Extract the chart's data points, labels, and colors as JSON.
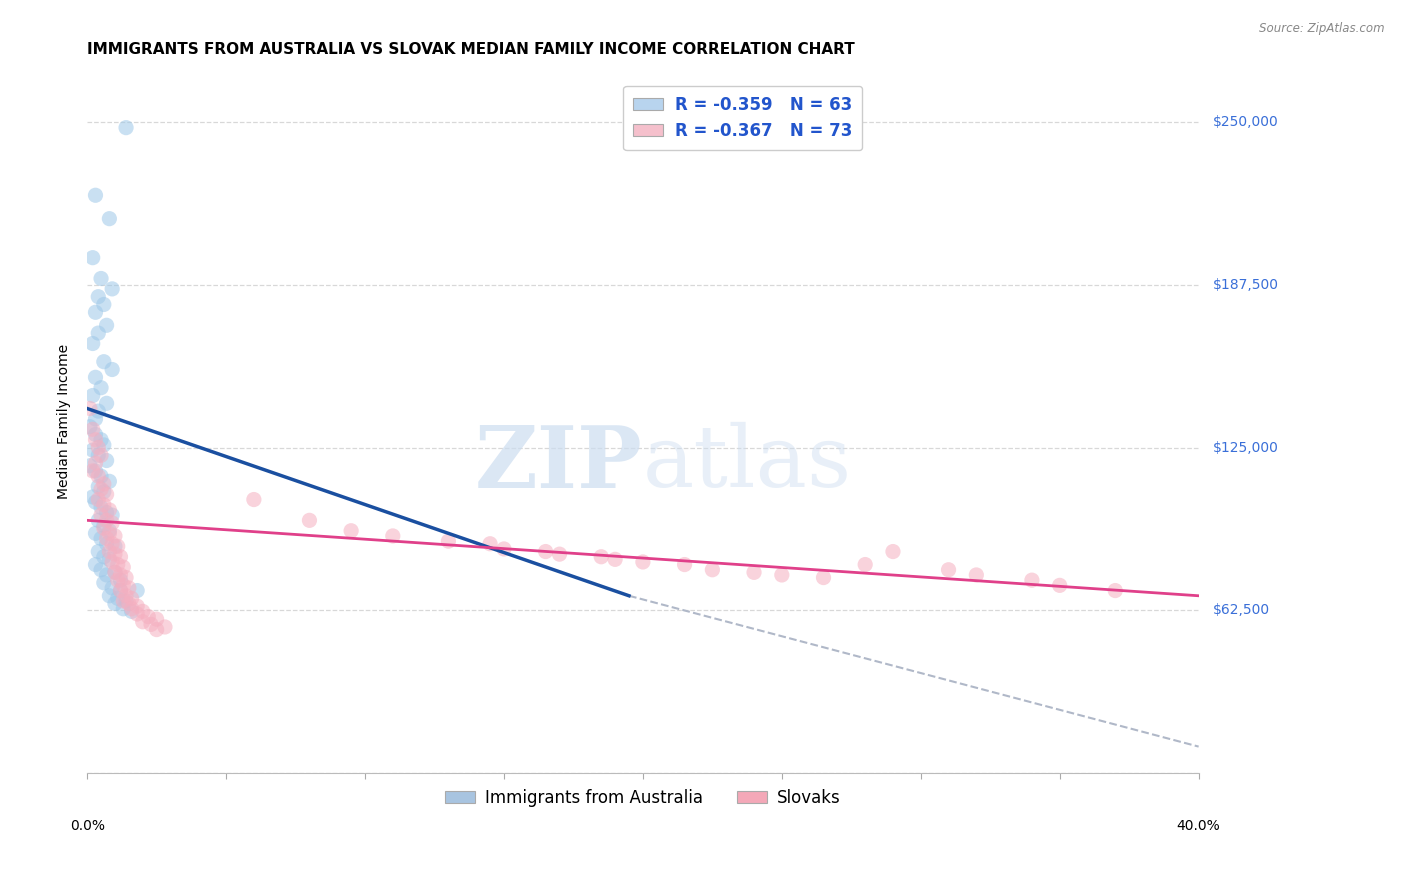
{
  "title": "IMMIGRANTS FROM AUSTRALIA VS SLOVAK MEDIAN FAMILY INCOME CORRELATION CHART",
  "source": "Source: ZipAtlas.com",
  "ylabel": "Median Family Income",
  "yticks": [
    0,
    62500,
    125000,
    187500,
    250000
  ],
  "ytick_labels": [
    "",
    "$62,500",
    "$125,000",
    "$187,500",
    "$250,000"
  ],
  "xlim": [
    0.0,
    0.4
  ],
  "ylim": [
    0,
    270000
  ],
  "legend_bottom": [
    "Immigrants from Australia",
    "Slovaks"
  ],
  "legend_bottom_colors": [
    "#a8c4e0",
    "#f4a8b8"
  ],
  "watermark_zip": "ZIP",
  "watermark_atlas": "atlas",
  "blue_scatter": [
    [
      0.014,
      248000
    ],
    [
      0.003,
      222000
    ],
    [
      0.008,
      213000
    ],
    [
      0.002,
      198000
    ],
    [
      0.005,
      190000
    ],
    [
      0.009,
      186000
    ],
    [
      0.004,
      183000
    ],
    [
      0.006,
      180000
    ],
    [
      0.003,
      177000
    ],
    [
      0.007,
      172000
    ],
    [
      0.004,
      169000
    ],
    [
      0.002,
      165000
    ],
    [
      0.006,
      158000
    ],
    [
      0.009,
      155000
    ],
    [
      0.003,
      152000
    ],
    [
      0.005,
      148000
    ],
    [
      0.002,
      145000
    ],
    [
      0.007,
      142000
    ],
    [
      0.004,
      139000
    ],
    [
      0.003,
      136000
    ],
    [
      0.001,
      133000
    ],
    [
      0.003,
      130000
    ],
    [
      0.005,
      128000
    ],
    [
      0.006,
      126000
    ],
    [
      0.002,
      124000
    ],
    [
      0.004,
      122000
    ],
    [
      0.007,
      120000
    ],
    [
      0.001,
      118000
    ],
    [
      0.003,
      116000
    ],
    [
      0.005,
      114000
    ],
    [
      0.008,
      112000
    ],
    [
      0.004,
      110000
    ],
    [
      0.006,
      108000
    ],
    [
      0.002,
      106000
    ],
    [
      0.003,
      104000
    ],
    [
      0.005,
      102000
    ],
    [
      0.007,
      100000
    ],
    [
      0.009,
      99000
    ],
    [
      0.004,
      97000
    ],
    [
      0.006,
      95000
    ],
    [
      0.008,
      93000
    ],
    [
      0.003,
      92000
    ],
    [
      0.005,
      90000
    ],
    [
      0.007,
      88000
    ],
    [
      0.01,
      87000
    ],
    [
      0.004,
      85000
    ],
    [
      0.006,
      83000
    ],
    [
      0.008,
      82000
    ],
    [
      0.003,
      80000
    ],
    [
      0.005,
      78000
    ],
    [
      0.01,
      77000
    ],
    [
      0.007,
      76000
    ],
    [
      0.012,
      74000
    ],
    [
      0.006,
      73000
    ],
    [
      0.009,
      71000
    ],
    [
      0.012,
      70000
    ],
    [
      0.008,
      68000
    ],
    [
      0.011,
      67000
    ],
    [
      0.014,
      66000
    ],
    [
      0.01,
      65000
    ],
    [
      0.013,
      63000
    ],
    [
      0.016,
      62000
    ],
    [
      0.018,
      70000
    ]
  ],
  "pink_scatter": [
    [
      0.001,
      140000
    ],
    [
      0.002,
      132000
    ],
    [
      0.003,
      128000
    ],
    [
      0.004,
      125000
    ],
    [
      0.005,
      122000
    ],
    [
      0.003,
      119000
    ],
    [
      0.002,
      116000
    ],
    [
      0.004,
      114000
    ],
    [
      0.006,
      111000
    ],
    [
      0.005,
      109000
    ],
    [
      0.007,
      107000
    ],
    [
      0.004,
      105000
    ],
    [
      0.006,
      103000
    ],
    [
      0.008,
      101000
    ],
    [
      0.005,
      99000
    ],
    [
      0.007,
      97000
    ],
    [
      0.009,
      96000
    ],
    [
      0.006,
      94000
    ],
    [
      0.008,
      92000
    ],
    [
      0.01,
      91000
    ],
    [
      0.007,
      90000
    ],
    [
      0.009,
      88000
    ],
    [
      0.011,
      87000
    ],
    [
      0.008,
      85000
    ],
    [
      0.01,
      84000
    ],
    [
      0.012,
      83000
    ],
    [
      0.009,
      81000
    ],
    [
      0.011,
      80000
    ],
    [
      0.013,
      79000
    ],
    [
      0.01,
      77000
    ],
    [
      0.012,
      76000
    ],
    [
      0.014,
      75000
    ],
    [
      0.011,
      74000
    ],
    [
      0.013,
      72000
    ],
    [
      0.015,
      71000
    ],
    [
      0.012,
      70000
    ],
    [
      0.014,
      68000
    ],
    [
      0.016,
      67000
    ],
    [
      0.013,
      66000
    ],
    [
      0.015,
      65000
    ],
    [
      0.018,
      64000
    ],
    [
      0.016,
      63000
    ],
    [
      0.02,
      62000
    ],
    [
      0.018,
      61000
    ],
    [
      0.022,
      60000
    ],
    [
      0.025,
      59000
    ],
    [
      0.02,
      58000
    ],
    [
      0.023,
      57000
    ],
    [
      0.028,
      56000
    ],
    [
      0.025,
      55000
    ],
    [
      0.06,
      105000
    ],
    [
      0.08,
      97000
    ],
    [
      0.095,
      93000
    ],
    [
      0.11,
      91000
    ],
    [
      0.13,
      89000
    ],
    [
      0.145,
      88000
    ],
    [
      0.15,
      86000
    ],
    [
      0.165,
      85000
    ],
    [
      0.17,
      84000
    ],
    [
      0.185,
      83000
    ],
    [
      0.19,
      82000
    ],
    [
      0.2,
      81000
    ],
    [
      0.215,
      80000
    ],
    [
      0.225,
      78000
    ],
    [
      0.24,
      77000
    ],
    [
      0.25,
      76000
    ],
    [
      0.265,
      75000
    ],
    [
      0.28,
      80000
    ],
    [
      0.29,
      85000
    ],
    [
      0.31,
      78000
    ],
    [
      0.32,
      76000
    ],
    [
      0.34,
      74000
    ],
    [
      0.35,
      72000
    ],
    [
      0.37,
      70000
    ]
  ],
  "blue_line": [
    [
      0.0,
      140000
    ],
    [
      0.195,
      68000
    ]
  ],
  "pink_line": [
    [
      0.0,
      97000
    ],
    [
      0.4,
      68000
    ]
  ],
  "dashed_line": [
    [
      0.195,
      68000
    ],
    [
      0.4,
      10000
    ]
  ],
  "scatter_size": 120,
  "scatter_alpha": 0.55,
  "blue_color": "#9ec8e8",
  "pink_color": "#f5afc0",
  "blue_line_color": "#1a4fa0",
  "pink_line_color": "#e0408a",
  "dashed_line_color": "#b0b8c8",
  "grid_color": "#d8d8d8",
  "background_color": "#ffffff",
  "title_fontsize": 11,
  "axis_label_fontsize": 10,
  "tick_label_fontsize": 10,
  "legend_fontsize": 12,
  "right_label_color": "#3a6fd8",
  "legend_text_color": "#2255cc"
}
